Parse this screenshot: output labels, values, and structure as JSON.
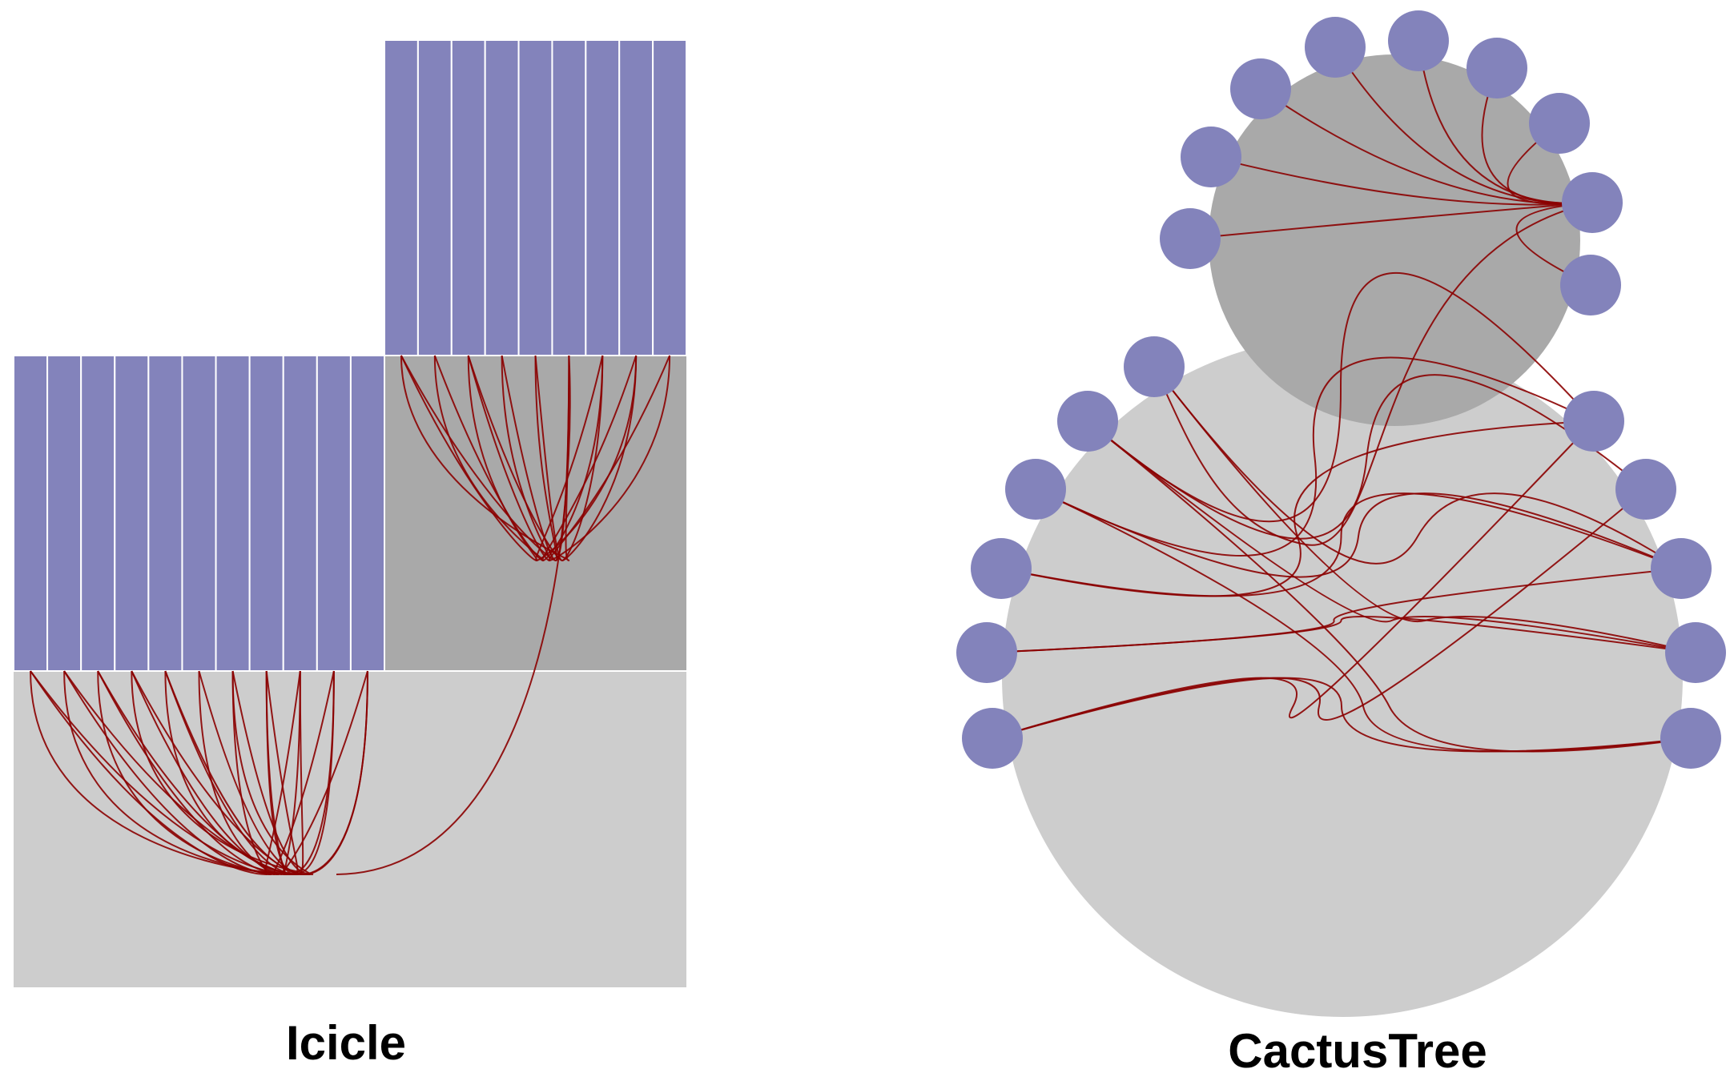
{
  "colors": {
    "leaf": "#8383bb",
    "root_region": "#cdcdcd",
    "subtree_region": "#a9a9a9",
    "edge": "#8b0000",
    "divider": "#ffffff"
  },
  "panels": [
    {
      "id": "icicle",
      "title": "Icicle"
    },
    {
      "id": "cactus",
      "title": "CactusTree"
    }
  ],
  "hierarchy": {
    "root_leaf_count": 11,
    "subtree_leaf_count": 9
  },
  "icons": {
    "leaf_node": "circle-node",
    "region": "rect-region"
  }
}
